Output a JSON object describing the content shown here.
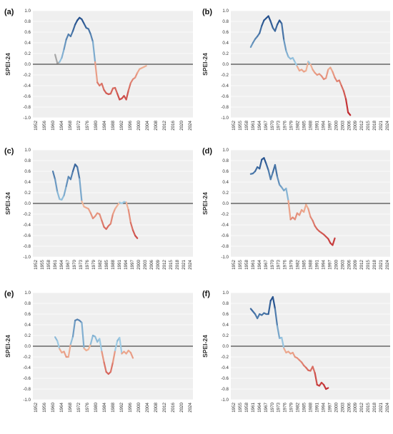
{
  "colors": {
    "plot_background": "#efefef",
    "zero_line": "#222222",
    "gridline": "#ffffff",
    "gray_start": "#a6a6a6",
    "wet_dark": "#234f8c",
    "wet_light": "#9fcde6",
    "dry_light": "#f2b89a",
    "dry_dark": "#c0272d"
  },
  "chart_data": [
    {
      "panel": "(a)",
      "type": "line",
      "ylabel": "SPEI-24",
      "ylim": [
        -1.0,
        1.0
      ],
      "yticks": [
        "1.0",
        "0.8",
        "0.6",
        "0.4",
        "0.2",
        "0.0",
        "-0.2",
        "-0.4",
        "-0.6",
        "-0.8",
        "-1.0"
      ],
      "xticks": [
        "1952",
        "1956",
        "1960",
        "1964",
        "1968",
        "1972",
        "1976",
        "1980",
        "1984",
        "1988",
        "1992",
        "1996",
        "2000",
        "2004",
        "2008",
        "2012",
        "2016",
        "2020",
        "2024"
      ],
      "xlim": [
        1952,
        2024
      ],
      "gray_until": 1964,
      "points": [
        [
          1962,
          0.18
        ],
        [
          1963,
          0.02
        ],
        [
          1964,
          0.04
        ],
        [
          1965,
          0.12
        ],
        [
          1966,
          0.28
        ],
        [
          1967,
          0.46
        ],
        [
          1968,
          0.56
        ],
        [
          1969,
          0.52
        ],
        [
          1970,
          0.62
        ],
        [
          1971,
          0.74
        ],
        [
          1972,
          0.82
        ],
        [
          1973,
          0.87
        ],
        [
          1974,
          0.84
        ],
        [
          1975,
          0.76
        ],
        [
          1976,
          0.68
        ],
        [
          1977,
          0.66
        ],
        [
          1978,
          0.56
        ],
        [
          1979,
          0.42
        ],
        [
          1980,
          0.04
        ],
        [
          1981,
          -0.34
        ],
        [
          1982,
          -0.4
        ],
        [
          1983,
          -0.36
        ],
        [
          1984,
          -0.48
        ],
        [
          1985,
          -0.54
        ],
        [
          1986,
          -0.56
        ],
        [
          1987,
          -0.55
        ],
        [
          1988,
          -0.45
        ],
        [
          1989,
          -0.44
        ],
        [
          1990,
          -0.55
        ],
        [
          1991,
          -0.66
        ],
        [
          1992,
          -0.64
        ],
        [
          1993,
          -0.59
        ],
        [
          1994,
          -0.66
        ],
        [
          1995,
          -0.49
        ],
        [
          1996,
          -0.35
        ],
        [
          1997,
          -0.28
        ],
        [
          1998,
          -0.25
        ],
        [
          1999,
          -0.16
        ],
        [
          2000,
          -0.09
        ],
        [
          2001,
          -0.07
        ],
        [
          2002,
          -0.05
        ],
        [
          2003,
          -0.03
        ]
      ]
    },
    {
      "panel": "(b)",
      "type": "line",
      "ylabel": "SPEI-24",
      "ylim": [
        -1.0,
        1.0
      ],
      "yticks": [
        "1.0",
        "0.8",
        "0.6",
        "0.4",
        "0.2",
        "0.0",
        "-0.2",
        "-0.4",
        "-0.6",
        "-0.8",
        "-1.0"
      ],
      "xticks": [
        "1952",
        "1955",
        "1958",
        "1961",
        "1964",
        "1967",
        "1970",
        "1973",
        "1976",
        "1979",
        "1982",
        "1985",
        "1988",
        "1991",
        "1994",
        "1997",
        "2000",
        "2003",
        "2006",
        "2009",
        "2012",
        "2015",
        "2018",
        "2021",
        "2024"
      ],
      "xlim": [
        1952,
        2024
      ],
      "gray_until": null,
      "points": [
        [
          1961,
          0.32
        ],
        [
          1962,
          0.4
        ],
        [
          1963,
          0.47
        ],
        [
          1964,
          0.52
        ],
        [
          1965,
          0.58
        ],
        [
          1966,
          0.72
        ],
        [
          1967,
          0.82
        ],
        [
          1968,
          0.86
        ],
        [
          1969,
          0.9
        ],
        [
          1970,
          0.8
        ],
        [
          1971,
          0.68
        ],
        [
          1972,
          0.62
        ],
        [
          1973,
          0.74
        ],
        [
          1974,
          0.82
        ],
        [
          1975,
          0.76
        ],
        [
          1976,
          0.45
        ],
        [
          1977,
          0.25
        ],
        [
          1978,
          0.14
        ],
        [
          1979,
          0.1
        ],
        [
          1980,
          0.12
        ],
        [
          1981,
          0.04
        ],
        [
          1982,
          -0.04
        ],
        [
          1983,
          -0.12
        ],
        [
          1984,
          -0.1
        ],
        [
          1985,
          -0.14
        ],
        [
          1986,
          -0.12
        ],
        [
          1987,
          0.05
        ],
        [
          1988,
          0.0
        ],
        [
          1989,
          -0.1
        ],
        [
          1990,
          -0.16
        ],
        [
          1991,
          -0.2
        ],
        [
          1992,
          -0.18
        ],
        [
          1993,
          -0.22
        ],
        [
          1994,
          -0.28
        ],
        [
          1995,
          -0.26
        ],
        [
          1996,
          -0.1
        ],
        [
          1997,
          -0.06
        ],
        [
          1998,
          -0.14
        ],
        [
          1999,
          -0.25
        ],
        [
          2000,
          -0.32
        ],
        [
          2001,
          -0.3
        ],
        [
          2002,
          -0.4
        ],
        [
          2003,
          -0.5
        ],
        [
          2004,
          -0.65
        ],
        [
          2005,
          -0.9
        ],
        [
          2006,
          -0.95
        ]
      ]
    },
    {
      "panel": "(c)",
      "type": "line",
      "ylabel": "SPEI-24",
      "ylim": [
        -1.0,
        1.0
      ],
      "yticks": [
        "1.0",
        "0.8",
        "0.6",
        "0.4",
        "0.2",
        "0.0",
        "-0.2",
        "-0.4",
        "-0.6",
        "-0.8",
        "-1.0"
      ],
      "xticks": [
        "1952",
        "1955",
        "1958",
        "1961",
        "1964",
        "1967",
        "1970",
        "1973",
        "1976",
        "1979",
        "1982",
        "1985",
        "1988",
        "1991",
        "1994",
        "1997",
        "2000",
        "2003",
        "2006",
        "2009",
        "2012",
        "2015",
        "2018",
        "2021",
        "2024"
      ],
      "xlim": [
        1952,
        2024
      ],
      "gray_until": null,
      "points": [
        [
          1961,
          0.6
        ],
        [
          1962,
          0.45
        ],
        [
          1963,
          0.22
        ],
        [
          1964,
          0.08
        ],
        [
          1965,
          0.07
        ],
        [
          1966,
          0.15
        ],
        [
          1967,
          0.32
        ],
        [
          1968,
          0.5
        ],
        [
          1969,
          0.45
        ],
        [
          1970,
          0.6
        ],
        [
          1971,
          0.73
        ],
        [
          1972,
          0.68
        ],
        [
          1973,
          0.46
        ],
        [
          1974,
          0.04
        ],
        [
          1975,
          -0.06
        ],
        [
          1976,
          -0.08
        ],
        [
          1977,
          -0.1
        ],
        [
          1978,
          -0.18
        ],
        [
          1979,
          -0.28
        ],
        [
          1980,
          -0.24
        ],
        [
          1981,
          -0.18
        ],
        [
          1982,
          -0.2
        ],
        [
          1983,
          -0.32
        ],
        [
          1984,
          -0.44
        ],
        [
          1985,
          -0.48
        ],
        [
          1986,
          -0.42
        ],
        [
          1987,
          -0.38
        ],
        [
          1988,
          -0.2
        ],
        [
          1989,
          -0.1
        ],
        [
          1990,
          -0.04
        ],
        [
          1991,
          0.02
        ],
        [
          1992,
          0.0
        ],
        [
          1993,
          0.03
        ],
        [
          1994,
          0.02
        ],
        [
          1995,
          -0.12
        ],
        [
          1996,
          -0.36
        ],
        [
          1997,
          -0.5
        ],
        [
          1998,
          -0.6
        ],
        [
          1999,
          -0.65
        ]
      ]
    },
    {
      "panel": "(d)",
      "type": "line",
      "ylabel": "SPEI-24",
      "ylim": [
        -1.0,
        1.0
      ],
      "yticks": [
        "1.0",
        "0.8",
        "0.6",
        "0.4",
        "0.2",
        "0.0",
        "-0.2",
        "-0.4",
        "-0.6",
        "-0.8",
        "-1.0"
      ],
      "xticks": [
        "1952",
        "1955",
        "1958",
        "1961",
        "1964",
        "1967",
        "1970",
        "1973",
        "1976",
        "1979",
        "1982",
        "1985",
        "1988",
        "1991",
        "1994",
        "1997",
        "2000",
        "2003",
        "2006",
        "2009",
        "2012",
        "2015",
        "2018",
        "2021",
        "2024"
      ],
      "xlim": [
        1952,
        2024
      ],
      "gray_until": null,
      "points": [
        [
          1961,
          0.55
        ],
        [
          1962,
          0.56
        ],
        [
          1963,
          0.6
        ],
        [
          1964,
          0.68
        ],
        [
          1965,
          0.65
        ],
        [
          1966,
          0.82
        ],
        [
          1967,
          0.85
        ],
        [
          1968,
          0.74
        ],
        [
          1969,
          0.62
        ],
        [
          1970,
          0.45
        ],
        [
          1971,
          0.58
        ],
        [
          1972,
          0.72
        ],
        [
          1973,
          0.5
        ],
        [
          1974,
          0.35
        ],
        [
          1975,
          0.3
        ],
        [
          1976,
          0.24
        ],
        [
          1977,
          0.28
        ],
        [
          1978,
          0.05
        ],
        [
          1979,
          -0.3
        ],
        [
          1980,
          -0.26
        ],
        [
          1981,
          -0.3
        ],
        [
          1982,
          -0.18
        ],
        [
          1983,
          -0.22
        ],
        [
          1984,
          -0.12
        ],
        [
          1985,
          -0.16
        ],
        [
          1986,
          -0.02
        ],
        [
          1987,
          -0.1
        ],
        [
          1988,
          -0.25
        ],
        [
          1989,
          -0.32
        ],
        [
          1990,
          -0.42
        ],
        [
          1991,
          -0.48
        ],
        [
          1992,
          -0.52
        ],
        [
          1993,
          -0.55
        ],
        [
          1994,
          -0.58
        ],
        [
          1995,
          -0.62
        ],
        [
          1996,
          -0.66
        ],
        [
          1997,
          -0.74
        ],
        [
          1998,
          -0.78
        ],
        [
          1999,
          -0.65
        ]
      ]
    },
    {
      "panel": "(e)",
      "type": "line",
      "ylabel": "SPEI-24",
      "ylim": [
        -1.0,
        1.0
      ],
      "yticks": [
        "1.0",
        "0.8",
        "0.6",
        "0.4",
        "0.2",
        "0.0",
        "-0.2",
        "-0.4",
        "-0.6",
        "-0.8",
        "-1.0"
      ],
      "xticks": [
        "1952",
        "1956",
        "1960",
        "1964",
        "1968",
        "1972",
        "1976",
        "1980",
        "1984",
        "1988",
        "1992",
        "1996",
        "2000",
        "2004",
        "2008",
        "2012",
        "2016",
        "2020",
        "2024"
      ],
      "xlim": [
        1952,
        2024
      ],
      "gray_until": null,
      "points": [
        [
          1962,
          0.17
        ],
        [
          1963,
          0.1
        ],
        [
          1964,
          -0.05
        ],
        [
          1965,
          -0.12
        ],
        [
          1966,
          -0.1
        ],
        [
          1967,
          -0.2
        ],
        [
          1968,
          -0.2
        ],
        [
          1969,
          0.04
        ],
        [
          1970,
          0.18
        ],
        [
          1971,
          0.48
        ],
        [
          1972,
          0.5
        ],
        [
          1973,
          0.48
        ],
        [
          1974,
          0.44
        ],
        [
          1975,
          -0.04
        ],
        [
          1976,
          -0.08
        ],
        [
          1977,
          -0.06
        ],
        [
          1978,
          0.04
        ],
        [
          1979,
          0.2
        ],
        [
          1980,
          0.18
        ],
        [
          1981,
          0.08
        ],
        [
          1982,
          0.14
        ],
        [
          1983,
          -0.1
        ],
        [
          1984,
          -0.3
        ],
        [
          1985,
          -0.48
        ],
        [
          1986,
          -0.52
        ],
        [
          1987,
          -0.48
        ],
        [
          1988,
          -0.3
        ],
        [
          1989,
          -0.08
        ],
        [
          1990,
          0.1
        ],
        [
          1991,
          0.16
        ],
        [
          1992,
          -0.14
        ],
        [
          1993,
          -0.1
        ],
        [
          1994,
          -0.14
        ],
        [
          1995,
          -0.08
        ],
        [
          1996,
          -0.12
        ],
        [
          1997,
          -0.22
        ]
      ]
    },
    {
      "panel": "(f)",
      "type": "line",
      "ylabel": "SPEI-24",
      "ylim": [
        -1.0,
        1.0
      ],
      "yticks": [
        "1.0",
        "0.8",
        "0.6",
        "0.4",
        "0.2",
        "0.0",
        "-0.2",
        "-0.4",
        "-0.6",
        "-0.8",
        "-1.0"
      ],
      "xticks": [
        "1952",
        "1955",
        "1958",
        "1961",
        "1964",
        "1967",
        "1970",
        "1973",
        "1976",
        "1979",
        "1982",
        "1985",
        "1988",
        "1991",
        "1994",
        "1997",
        "2000",
        "2003",
        "2006",
        "2009",
        "2012",
        "2015",
        "2018",
        "2021",
        "2024"
      ],
      "xlim": [
        1952,
        2024
      ],
      "gray_until": null,
      "points": [
        [
          1961,
          0.7
        ],
        [
          1962,
          0.65
        ],
        [
          1963,
          0.6
        ],
        [
          1964,
          0.52
        ],
        [
          1965,
          0.6
        ],
        [
          1966,
          0.58
        ],
        [
          1967,
          0.62
        ],
        [
          1968,
          0.6
        ],
        [
          1969,
          0.6
        ],
        [
          1970,
          0.85
        ],
        [
          1971,
          0.92
        ],
        [
          1972,
          0.7
        ],
        [
          1973,
          0.38
        ],
        [
          1974,
          0.15
        ],
        [
          1975,
          0.16
        ],
        [
          1976,
          -0.04
        ],
        [
          1977,
          -0.12
        ],
        [
          1978,
          -0.1
        ],
        [
          1979,
          -0.14
        ],
        [
          1980,
          -0.12
        ],
        [
          1981,
          -0.2
        ],
        [
          1982,
          -0.22
        ],
        [
          1983,
          -0.26
        ],
        [
          1984,
          -0.3
        ],
        [
          1985,
          -0.36
        ],
        [
          1986,
          -0.4
        ],
        [
          1987,
          -0.45
        ],
        [
          1988,
          -0.46
        ],
        [
          1989,
          -0.38
        ],
        [
          1990,
          -0.5
        ],
        [
          1991,
          -0.72
        ],
        [
          1992,
          -0.74
        ],
        [
          1993,
          -0.68
        ],
        [
          1994,
          -0.72
        ],
        [
          1995,
          -0.8
        ],
        [
          1996,
          -0.78
        ]
      ]
    }
  ]
}
